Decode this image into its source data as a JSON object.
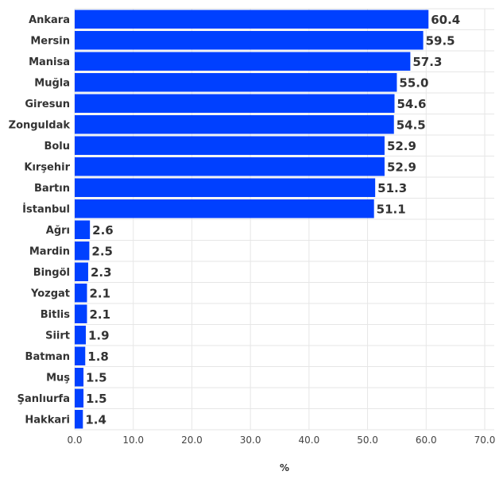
{
  "chart_data": {
    "type": "bar",
    "orientation": "horizontal",
    "categories": [
      "Ankara",
      "Mersin",
      "Manisa",
      "Muğla",
      "Giresun",
      "Zonguldak",
      "Bolu",
      "Kırşehir",
      "Bartın",
      "İstanbul",
      "Ağrı",
      "Mardin",
      "Bingöl",
      "Yozgat",
      "Bitlis",
      "Siirt",
      "Batman",
      "Muş",
      "Şanlıurfa",
      "Hakkari"
    ],
    "values": [
      60.4,
      59.5,
      57.3,
      55.0,
      54.6,
      54.5,
      52.9,
      52.9,
      51.3,
      51.1,
      2.6,
      2.5,
      2.3,
      2.1,
      2.1,
      1.9,
      1.8,
      1.5,
      1.5,
      1.4
    ],
    "value_labels": [
      "60.4",
      "59.5",
      "57.3",
      "55.0",
      "54.6",
      "54.5",
      "52.9",
      "52.9",
      "51.3",
      "51.1",
      "2.6",
      "2.5",
      "2.3",
      "2.1",
      "2.1",
      "1.9",
      "1.8",
      "1.5",
      "1.5",
      "1.4"
    ],
    "xlim": [
      0,
      70
    ],
    "xticks": [
      "0.0",
      "10.0",
      "20.0",
      "30.0",
      "40.0",
      "50.0",
      "60.0",
      "70.0"
    ],
    "xlabel": "%",
    "bar_color": "#0040ff",
    "grid": true
  }
}
